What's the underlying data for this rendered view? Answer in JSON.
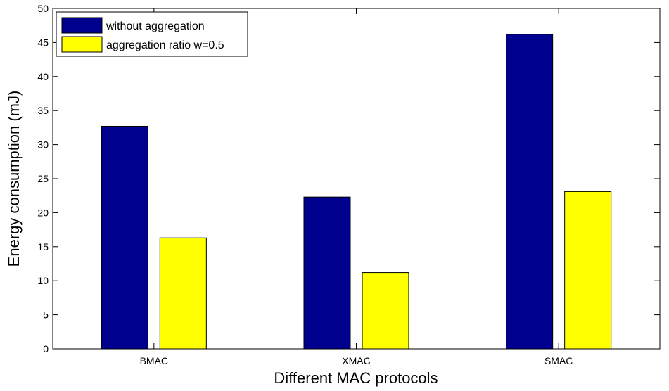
{
  "chart_data": {
    "type": "bar",
    "title": "",
    "xlabel": "Different MAC protocols",
    "ylabel": "Energy consumption (mJ)",
    "categories": [
      "BMAC",
      "XMAC",
      "SMAC"
    ],
    "series": [
      {
        "name": "without aggregation",
        "color": "#00008f",
        "values": [
          32.7,
          22.3,
          46.2
        ]
      },
      {
        "name": "aggregation ratio w=0.5",
        "color": "#ffff00",
        "values": [
          16.3,
          11.2,
          23.1
        ]
      }
    ],
    "ylim": [
      0,
      50
    ],
    "yticks": [
      "0",
      "5",
      "10",
      "15",
      "20",
      "25",
      "30",
      "35",
      "40",
      "45",
      "50"
    ],
    "grid": false,
    "legend_position": "top-left"
  }
}
